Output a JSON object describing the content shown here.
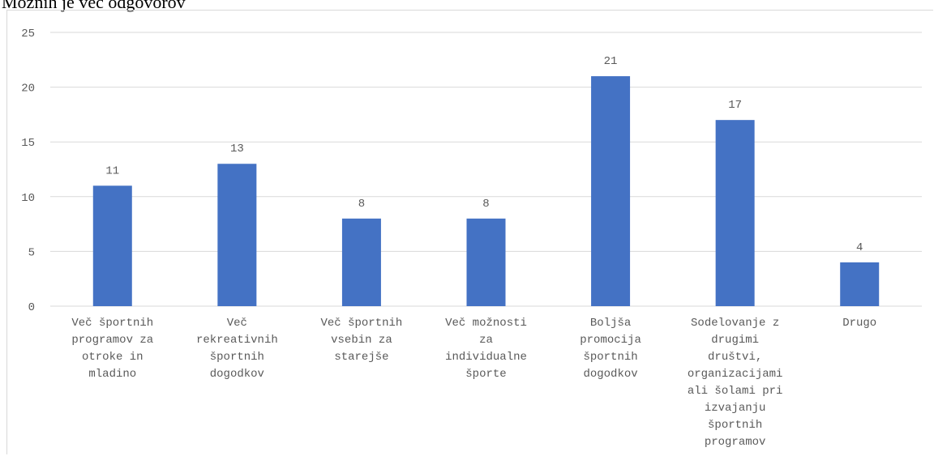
{
  "page": {
    "title": "Možnih je več odgovorov"
  },
  "chart_data": {
    "type": "bar",
    "title": "",
    "xlabel": "",
    "ylabel": "",
    "ylim": [
      0,
      25
    ],
    "yticks": [
      0,
      5,
      10,
      15,
      20,
      25
    ],
    "grid": true,
    "legend": "none",
    "bar_color": "#4472C4",
    "categories": [
      "Več športnih programov za otroke in mladino",
      "Več rekreativnih športnih dogodkov",
      "Več športnih vsebin za starejše",
      "Več možnosti za individualne športe",
      "Boljša promocija športnih dogodkov",
      "Sodelovanje z drugimi društvi, organizacijami ali šolami pri izvajanju športnih programov",
      "Drugo"
    ],
    "category_lines": [
      [
        "Več športnih",
        "programov za",
        "otroke in",
        "mladino"
      ],
      [
        "Več",
        "rekreativnih",
        "športnih",
        "dogodkov"
      ],
      [
        "Več športnih",
        "vsebin za",
        "starejše"
      ],
      [
        "Več možnosti",
        "za",
        "individualne",
        "športe"
      ],
      [
        "Boljša",
        "promocija",
        "športnih",
        "dogodkov"
      ],
      [
        "Sodelovanje z",
        "drugimi",
        "društvi,",
        "organizacijami",
        "ali šolami pri",
        "izvajanju",
        "športnih",
        "programov"
      ],
      [
        "Drugo"
      ]
    ],
    "values": [
      11,
      13,
      8,
      8,
      21,
      17,
      4
    ]
  }
}
